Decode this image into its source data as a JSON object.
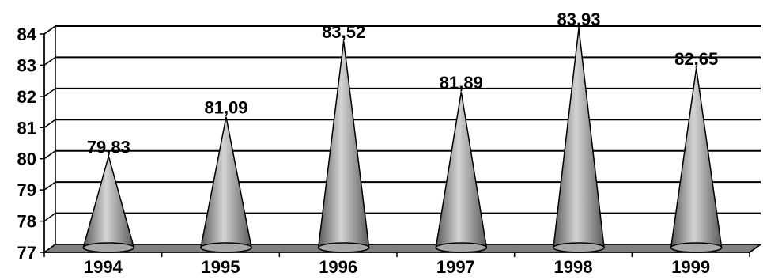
{
  "chart_data": {
    "type": "bar",
    "style": "3d-cone",
    "categories": [
      "1994",
      "1995",
      "1996",
      "1997",
      "1998",
      "1999"
    ],
    "values": [
      79.83,
      81.09,
      83.52,
      81.89,
      83.93,
      82.65
    ],
    "data_labels": [
      "79,83",
      "81,09",
      "83,52",
      "81,89",
      "83,93",
      "82,65"
    ],
    "y_ticks": [
      "77",
      "78",
      "79",
      "80",
      "81",
      "82",
      "83",
      "84"
    ],
    "ylim": [
      77,
      84
    ],
    "grid": true,
    "title": "",
    "xlabel": "",
    "ylabel": ""
  },
  "colors": {
    "cone_dark": "#5a5a5a",
    "cone_mid": "#a8a8a8",
    "cone_light": "#d4d4d4",
    "floor": "#808080",
    "grid": "#000000"
  }
}
